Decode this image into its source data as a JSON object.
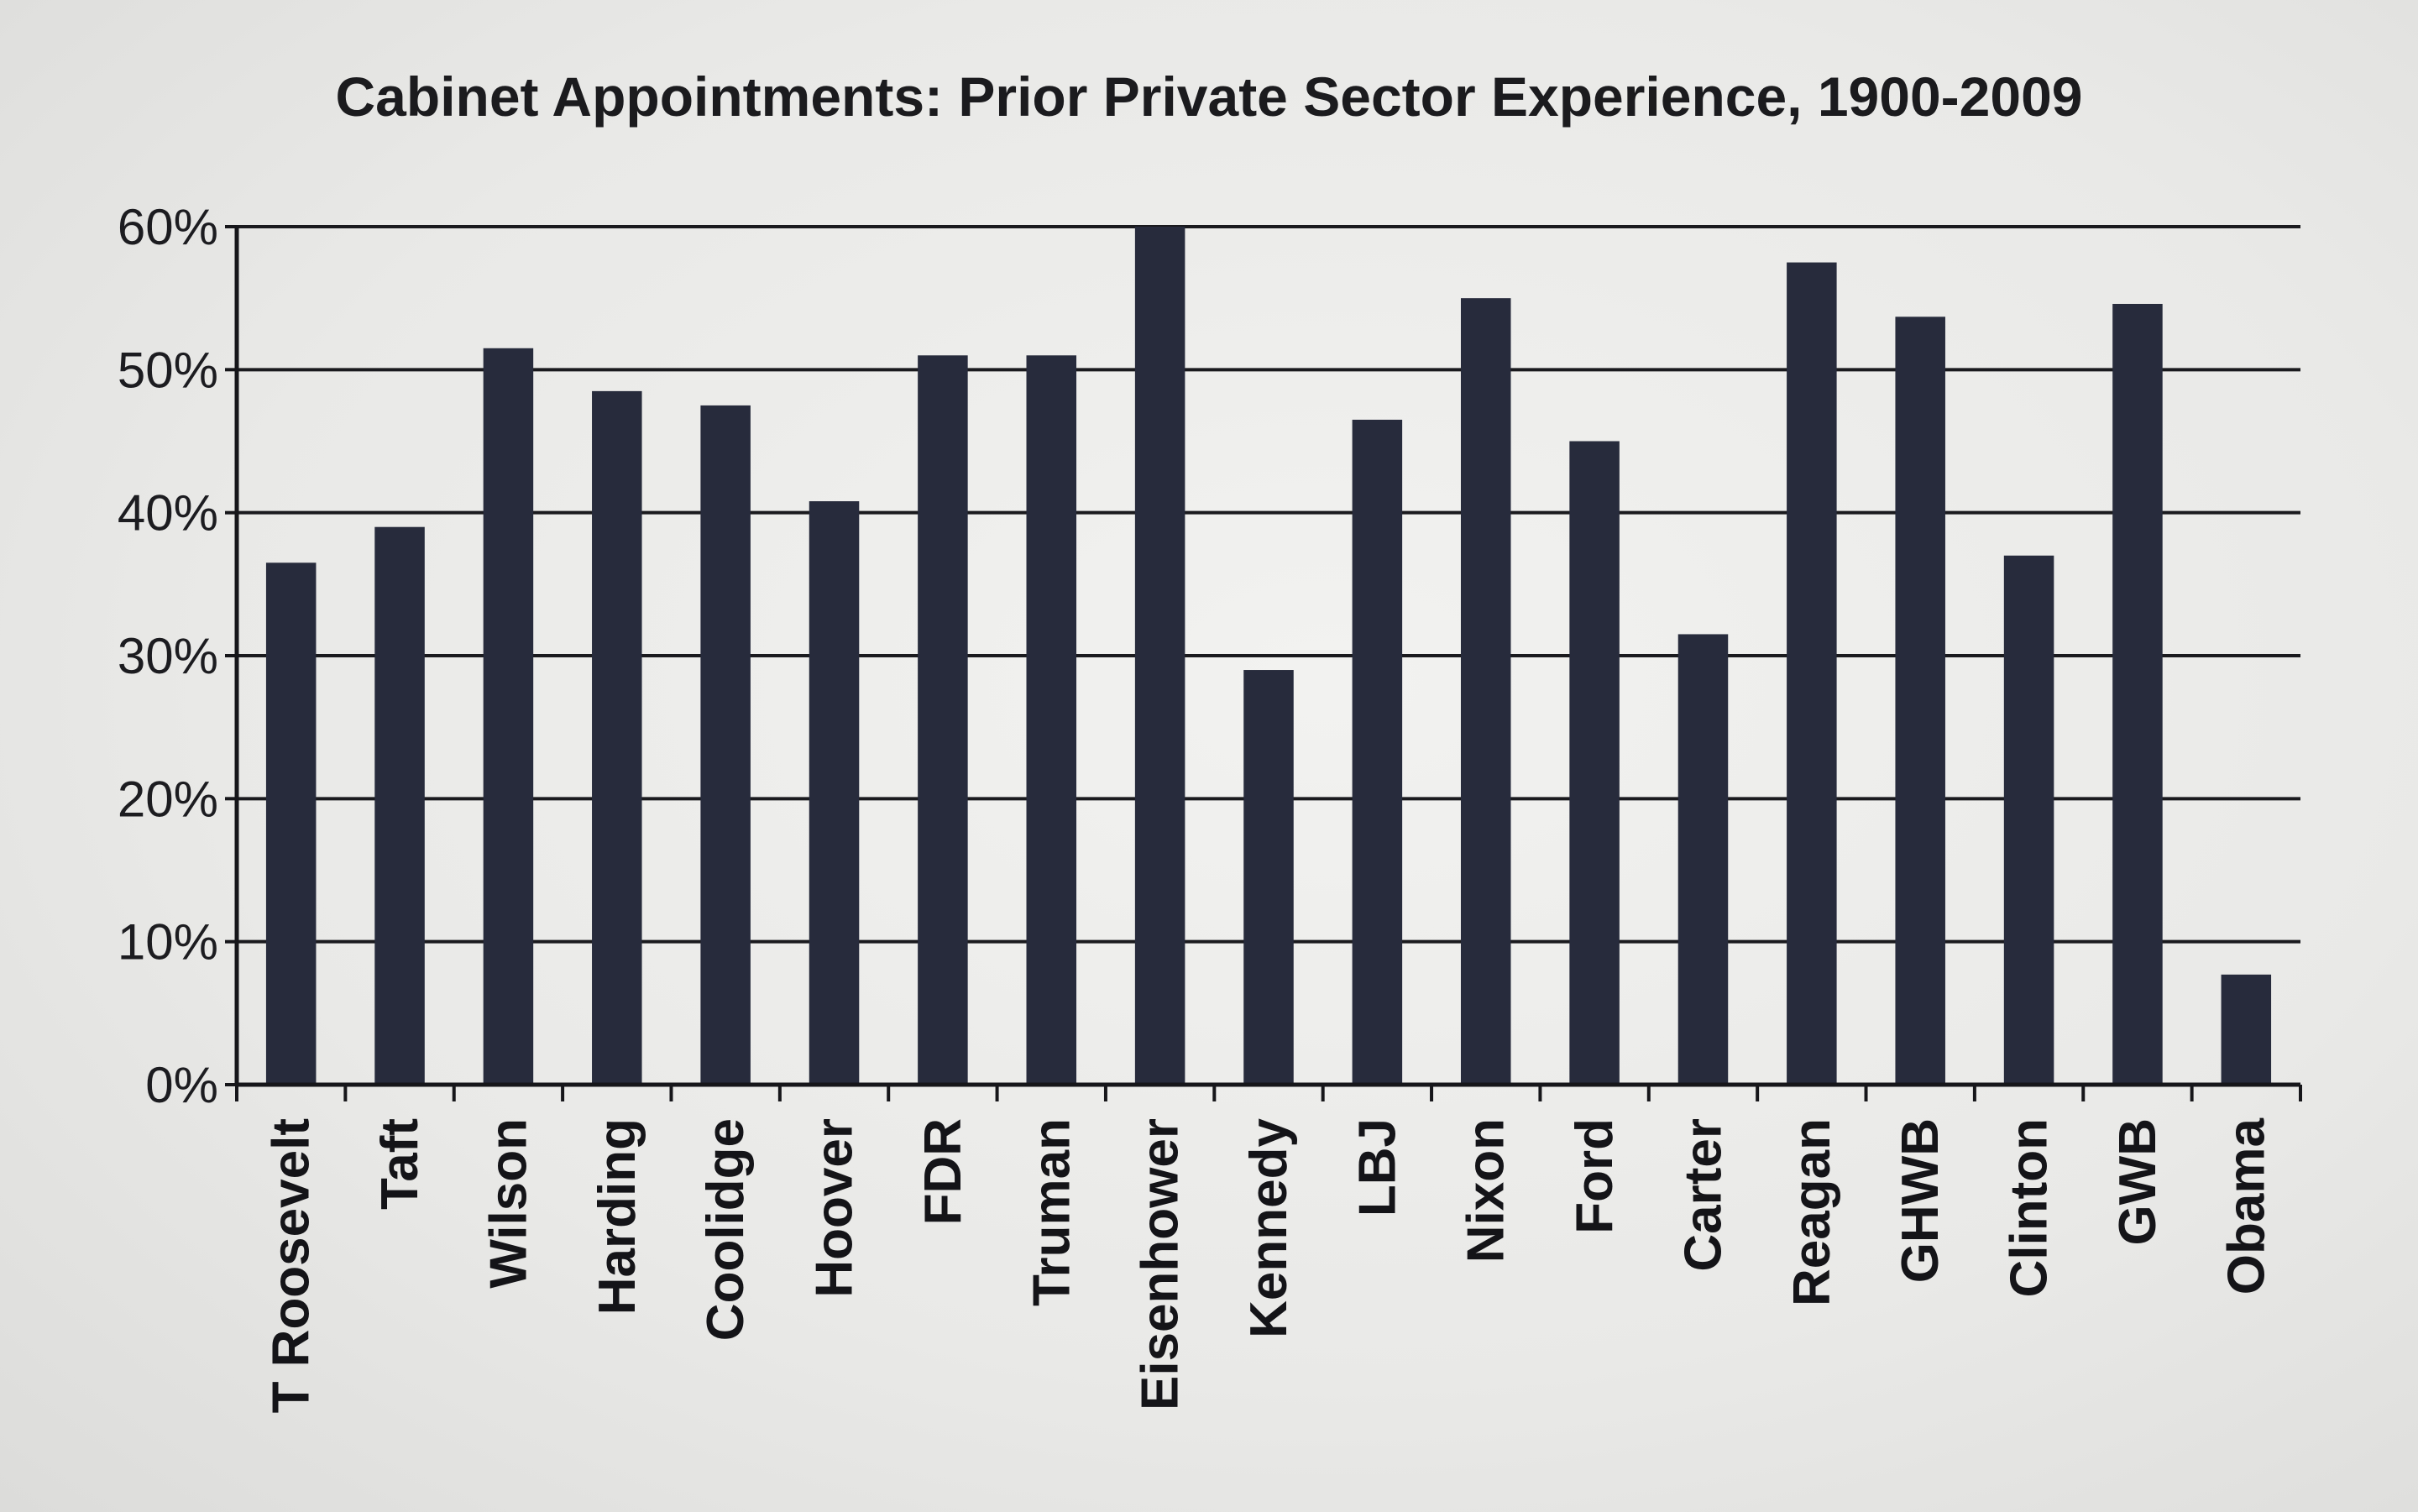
{
  "chart_data": {
    "type": "bar",
    "title": "Cabinet Appointments: Prior Private Sector Experience, 1900-2009",
    "xlabel": "",
    "ylabel": "",
    "ylim": [
      0,
      60
    ],
    "y_ticks": [
      0,
      10,
      20,
      30,
      40,
      50,
      60
    ],
    "y_tick_labels": [
      "0%",
      "10%",
      "20%",
      "30%",
      "40%",
      "50%",
      "60%"
    ],
    "grid": true,
    "legend": "none",
    "bar_color": "#272b3c",
    "categories": [
      "T Roosevelt",
      "Taft",
      "Wilson",
      "Harding",
      "Coolidge",
      "Hoover",
      "FDR",
      "Truman",
      "Eisenhower",
      "Kennedy",
      "LBJ",
      "Nixon",
      "Ford",
      "Carter",
      "Reagan",
      "GHWB",
      "Clinton",
      "GWB",
      "Obama"
    ],
    "values": [
      36.5,
      39,
      51.5,
      48.5,
      47.5,
      40.8,
      51,
      51,
      60,
      29,
      46.5,
      55,
      45,
      31.5,
      57.5,
      53.7,
      37,
      54.6,
      7.7
    ]
  }
}
